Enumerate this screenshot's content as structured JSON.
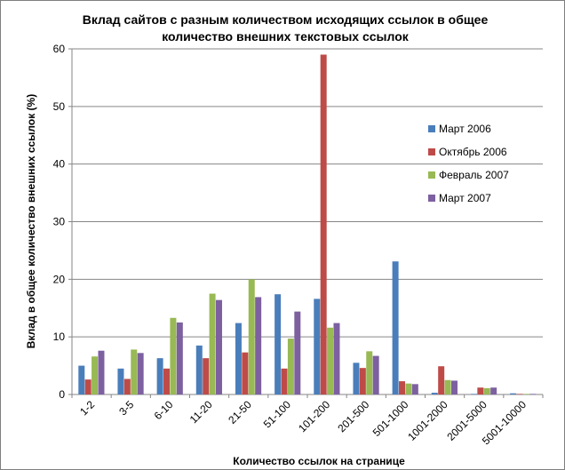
{
  "chart_data": {
    "type": "bar",
    "title_lines": [
      "Вклад сайтов с разным количеством исходящих ссылок в общее",
      "количество внешних текстовых ссылок"
    ],
    "xlabel": "Количество ссылок на странице",
    "ylabel": "Вклад в общее количество внешних ссылок (%)",
    "ylim": [
      0,
      60
    ],
    "yticks": [
      0,
      10,
      20,
      30,
      40,
      50,
      60
    ],
    "grid": true,
    "legend_position": "right",
    "categories": [
      "1-2",
      "3-5",
      "6-10",
      "11-20",
      "21-50",
      "51-100",
      "101-200",
      "201-500",
      "501-1000",
      "1001-2000",
      "2001-5000",
      "5001-10000"
    ],
    "series": [
      {
        "name": "Март 2006",
        "color": "#4a7ebb",
        "values": [
          5.0,
          4.5,
          6.3,
          8.5,
          12.4,
          17.4,
          16.6,
          5.5,
          23.1,
          0.3,
          0.1,
          0.2
        ]
      },
      {
        "name": "Октябрь 2006",
        "color": "#be4b48",
        "values": [
          2.6,
          2.7,
          4.5,
          6.3,
          7.3,
          4.5,
          59.0,
          4.6,
          2.3,
          4.9,
          1.2,
          0.1
        ]
      },
      {
        "name": "Февраль 2007",
        "color": "#98b954",
        "values": [
          6.6,
          7.8,
          13.3,
          17.5,
          20.0,
          9.7,
          11.6,
          7.5,
          1.9,
          2.5,
          1.1,
          0.1
        ]
      },
      {
        "name": "Март 2007",
        "color": "#7d60a0",
        "values": [
          7.6,
          7.2,
          12.5,
          16.4,
          16.9,
          14.4,
          12.4,
          6.7,
          1.8,
          2.4,
          1.2,
          0.1
        ]
      }
    ]
  }
}
